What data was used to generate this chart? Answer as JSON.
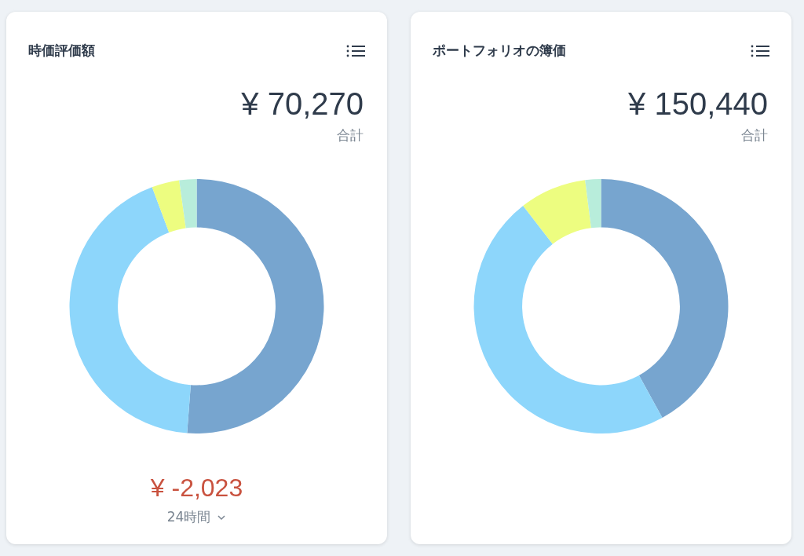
{
  "chart_data": [
    {
      "type": "donut",
      "title": "時価評価額",
      "categories": [
        null,
        null,
        null,
        null
      ],
      "values": [
        51.2,
        43.1,
        3.5,
        2.2
      ],
      "colors": [
        "#77a5cf",
        "#8dd6fb",
        "#edfd80",
        "#b8eddb"
      ],
      "legend": false,
      "annotations": [
        "¥ 70,270",
        "合計",
        "¥ -2,023",
        "24時間"
      ]
    },
    {
      "type": "donut",
      "title": "ポートフォリオの簿価",
      "categories": [
        null,
        null,
        null,
        null
      ],
      "values": [
        42.0,
        47.5,
        8.5,
        2.0
      ],
      "colors": [
        "#77a5cf",
        "#8dd6fb",
        "#edfd80",
        "#b8eddb"
      ],
      "legend": false,
      "annotations": [
        "¥ 150,440",
        "合計"
      ]
    }
  ]
}
